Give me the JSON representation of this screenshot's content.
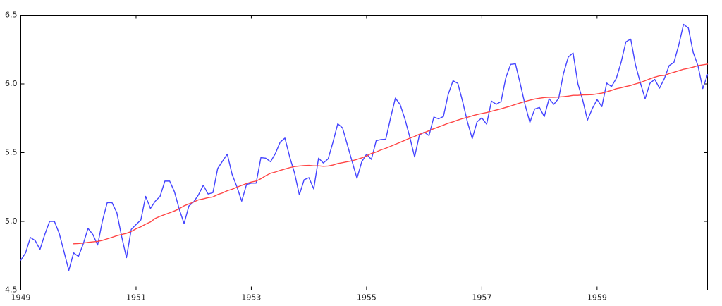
{
  "chart_data": {
    "type": "line",
    "title": "",
    "xlabel": "",
    "ylabel": "",
    "xlim": [
      "1949-01",
      "1960-12"
    ],
    "ylim": [
      4.5,
      6.5
    ],
    "x_ticks": [
      "1949",
      "1951",
      "1953",
      "1955",
      "1957",
      "1959"
    ],
    "y_ticks": [
      "4.5",
      "5.0",
      "5.5",
      "6.0",
      "6.5"
    ],
    "grid": false,
    "legend": "none",
    "x_start": "1949-01",
    "x_step": "1 month",
    "series": [
      {
        "color": "#4444ff",
        "values": [
          4.718,
          4.771,
          4.883,
          4.86,
          4.796,
          4.905,
          5.0,
          5.0,
          4.913,
          4.779,
          4.644,
          4.771,
          4.745,
          4.836,
          4.949,
          4.905,
          4.828,
          5.004,
          5.136,
          5.136,
          5.063,
          4.89,
          4.736,
          4.942,
          4.977,
          5.011,
          5.182,
          5.094,
          5.147,
          5.182,
          5.293,
          5.293,
          5.215,
          5.088,
          4.984,
          5.112,
          5.142,
          5.193,
          5.263,
          5.199,
          5.209,
          5.385,
          5.438,
          5.489,
          5.342,
          5.252,
          5.147,
          5.268,
          5.278,
          5.278,
          5.464,
          5.46,
          5.434,
          5.493,
          5.576,
          5.606,
          5.468,
          5.352,
          5.193,
          5.303,
          5.318,
          5.236,
          5.46,
          5.425,
          5.455,
          5.576,
          5.71,
          5.68,
          5.557,
          5.434,
          5.313,
          5.434,
          5.489,
          5.451,
          5.587,
          5.595,
          5.598,
          5.753,
          5.897,
          5.849,
          5.743,
          5.613,
          5.469,
          5.628,
          5.649,
          5.624,
          5.759,
          5.746,
          5.763,
          5.924,
          6.023,
          6.004,
          5.872,
          5.724,
          5.602,
          5.724,
          5.753,
          5.707,
          5.875,
          5.852,
          5.872,
          6.045,
          6.142,
          6.146,
          6.001,
          5.849,
          5.72,
          5.817,
          5.829,
          5.762,
          5.892,
          5.852,
          5.894,
          6.075,
          6.196,
          6.225,
          6.001,
          5.883,
          5.737,
          5.82,
          5.886,
          5.835,
          6.006,
          5.981,
          6.04,
          6.157,
          6.306,
          6.326,
          6.138,
          6.009,
          5.892,
          6.004,
          6.033,
          5.969,
          6.038,
          6.133,
          6.157,
          6.282,
          6.433,
          6.407,
          6.23,
          6.133,
          5.966,
          6.068
        ]
      },
      {
        "color": "#ff4444",
        "values": [
          null,
          null,
          null,
          null,
          null,
          null,
          null,
          null,
          null,
          null,
          null,
          4.837,
          4.839,
          4.842,
          4.847,
          4.851,
          4.854,
          4.862,
          4.873,
          4.884,
          4.896,
          4.905,
          4.913,
          4.927,
          4.946,
          4.961,
          4.98,
          4.996,
          5.022,
          5.037,
          5.05,
          5.063,
          5.076,
          5.092,
          5.113,
          5.127,
          5.141,
          5.157,
          5.164,
          5.173,
          5.178,
          5.195,
          5.207,
          5.223,
          5.234,
          5.248,
          5.262,
          5.275,
          5.286,
          5.293,
          5.31,
          5.332,
          5.35,
          5.359,
          5.371,
          5.381,
          5.391,
          5.399,
          5.403,
          5.406,
          5.407,
          5.404,
          5.404,
          5.401,
          5.403,
          5.41,
          5.421,
          5.427,
          5.434,
          5.441,
          5.451,
          5.462,
          5.476,
          5.494,
          5.505,
          5.52,
          5.532,
          5.546,
          5.561,
          5.575,
          5.59,
          5.605,
          5.618,
          5.634,
          5.645,
          5.66,
          5.674,
          5.687,
          5.7,
          5.714,
          5.724,
          5.737,
          5.748,
          5.757,
          5.768,
          5.777,
          5.785,
          5.792,
          5.801,
          5.81,
          5.819,
          5.829,
          5.839,
          5.851,
          5.862,
          5.872,
          5.882,
          5.89,
          5.896,
          5.901,
          5.903,
          5.903,
          5.905,
          5.907,
          5.911,
          5.917,
          5.917,
          5.92,
          5.921,
          5.922,
          5.927,
          5.933,
          5.942,
          5.953,
          5.965,
          5.972,
          5.981,
          5.989,
          6.0,
          6.01,
          6.023,
          6.037,
          6.049,
          6.059,
          6.062,
          6.075,
          6.085,
          6.096,
          6.107,
          6.114,
          6.122,
          6.133,
          6.139,
          6.144
        ]
      }
    ]
  }
}
